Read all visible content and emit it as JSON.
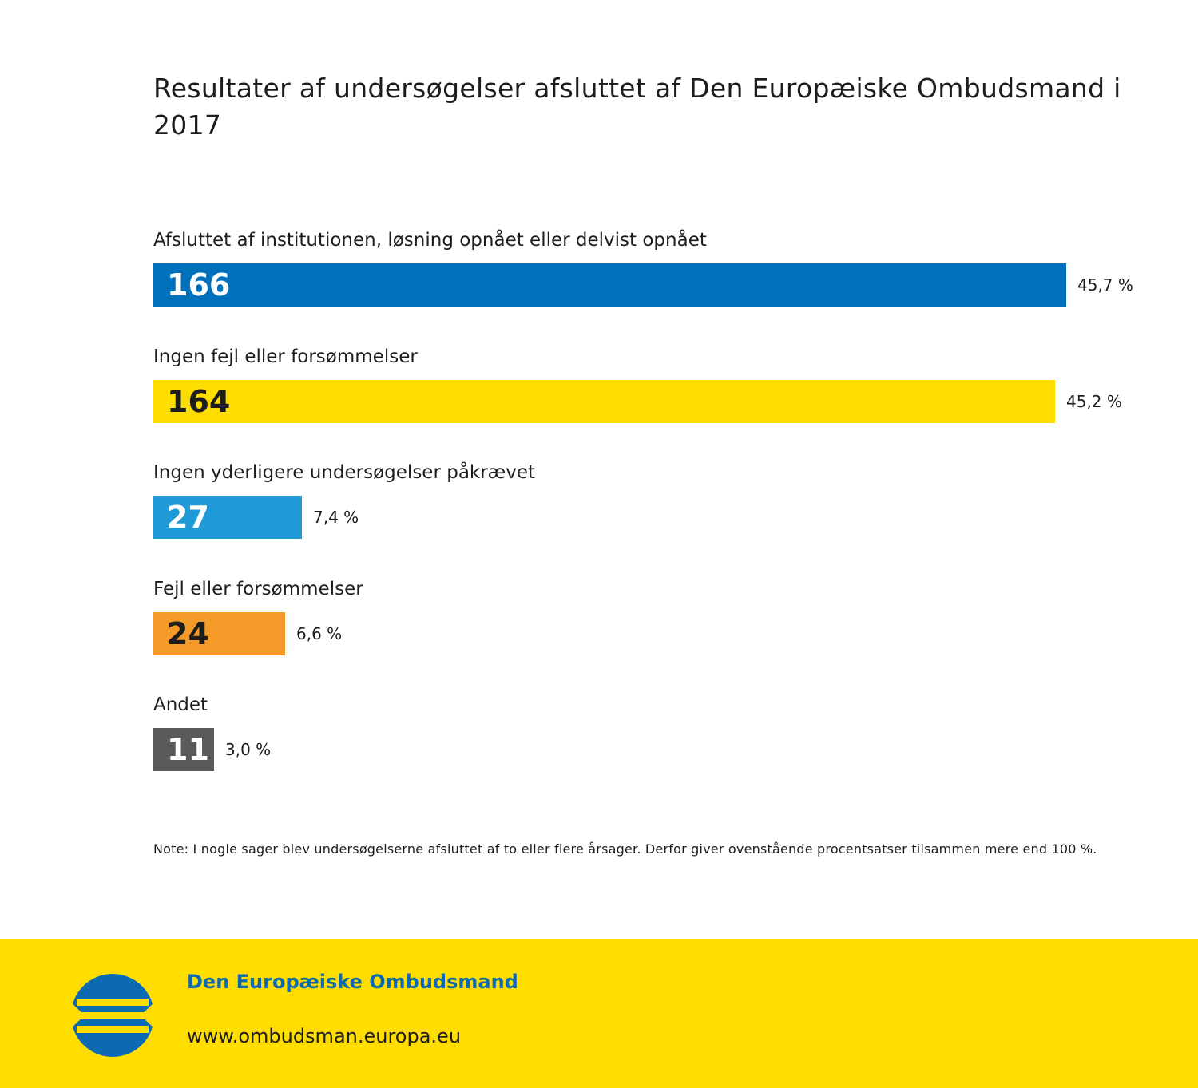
{
  "chart_data": {
    "type": "bar",
    "orientation": "horizontal",
    "title": "Resultater af undersøgelser afsluttet af Den Europæiske Ombudsmand i 2017",
    "categories": [
      "Afsluttet af institutionen, løsning opnået eller delvist opnået",
      "Ingen fejl eller forsømmelser",
      "Ingen yderligere undersøgelser påkrævet",
      "Fejl eller forsømmelser",
      "Andet"
    ],
    "values": [
      166,
      164,
      27,
      24,
      11
    ],
    "value_labels": [
      "166",
      "164",
      "27",
      "24",
      "11"
    ],
    "percent_labels": [
      "45,7 %",
      "45,2 %",
      "7,4 %",
      "6,6 %",
      "3,0 %"
    ],
    "colors": [
      "#0070ba",
      "#ffdd00",
      "#1f9ad6",
      "#f39a28",
      "#5a5a5a"
    ],
    "value_text_colors": [
      "#ffffff",
      "#1d1d1b",
      "#ffffff",
      "#1d1d1b",
      "#ffffff"
    ],
    "grid": false,
    "legend": "none"
  },
  "note": "Note: I nogle sager blev undersøgelserne afsluttet af to eller flere årsager. Derfor giver ovenstående procentsatser tilsammen mere end 100 %.",
  "footer": {
    "name": "Den Europæiske Ombudsmand",
    "url": "www.ombudsman.europa.eu",
    "background": "#ffdd00",
    "logo_icon": "european-ombudsman-logo-icon"
  }
}
